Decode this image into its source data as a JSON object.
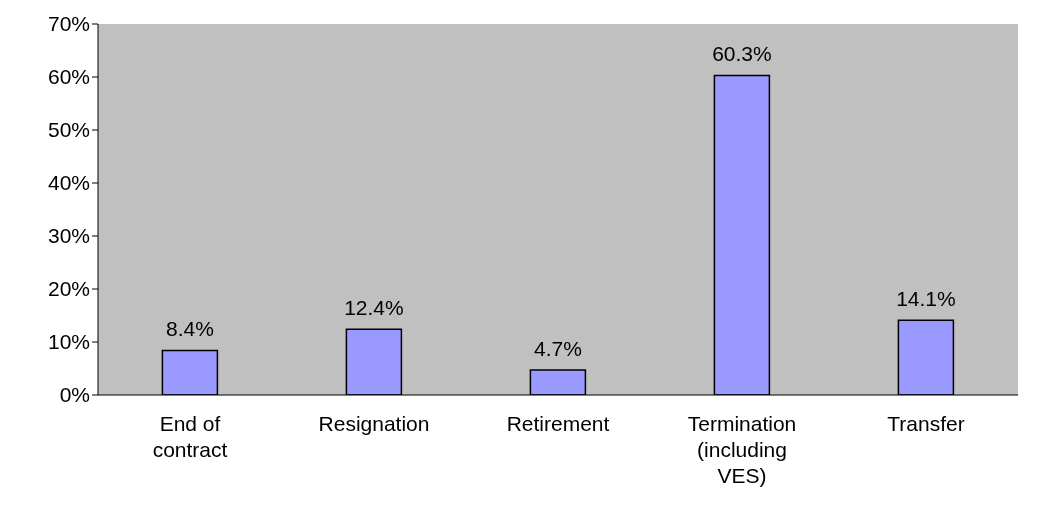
{
  "chart_data": {
    "type": "bar",
    "categories": [
      "End of contract",
      "Resignation",
      "Retirement",
      "Termination (including VES)",
      "Transfer"
    ],
    "values": [
      8.4,
      12.4,
      4.7,
      60.3,
      14.1
    ],
    "color": "#9999ff",
    "value_labels": [
      "8.4%",
      "12.4%",
      "4.7%",
      "60.3%",
      "14.1%"
    ],
    "ylim": [
      0,
      70
    ],
    "yticks": [
      {
        "value": 0,
        "label": "0%"
      },
      {
        "value": 10,
        "label": "10%"
      },
      {
        "value": 20,
        "label": "20%"
      },
      {
        "value": 30,
        "label": "30%"
      },
      {
        "value": 40,
        "label": "40%"
      },
      {
        "value": 50,
        "label": "50%"
      },
      {
        "value": 60,
        "label": "60%"
      },
      {
        "value": 70,
        "label": "70%"
      }
    ],
    "grid": false,
    "legend": false
  }
}
